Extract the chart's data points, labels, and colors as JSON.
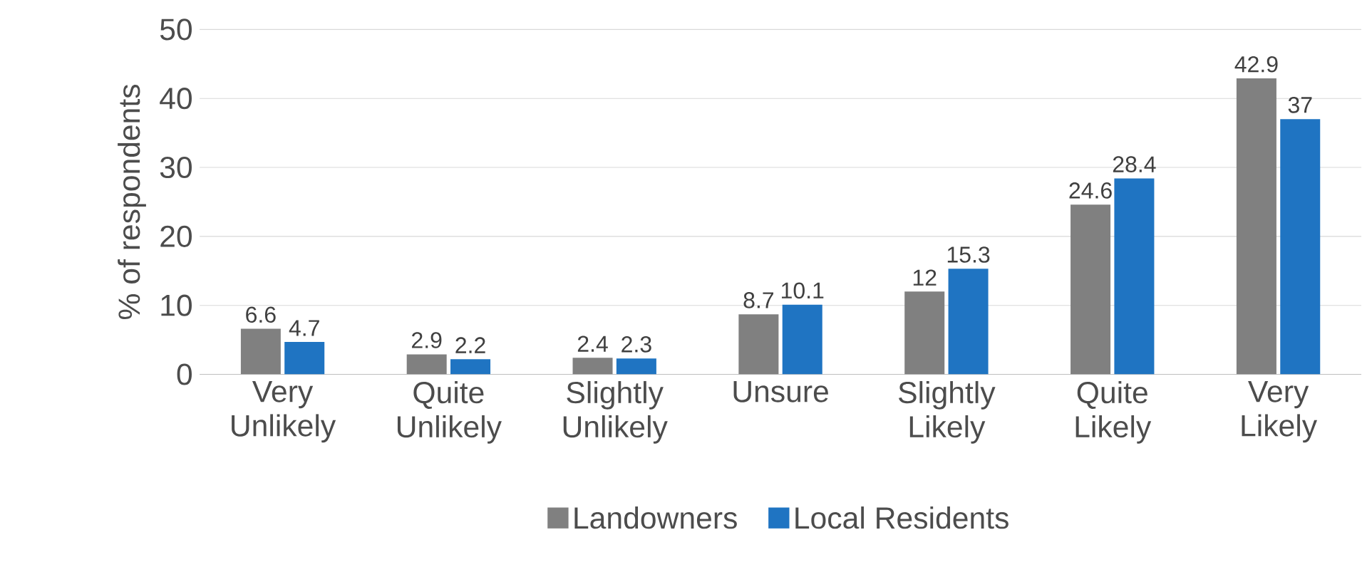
{
  "chart_data": {
    "type": "bar",
    "ylabel": "% of respondents",
    "categories": [
      "Very Unlikely",
      "Quite Unlikely",
      "Slightly Unlikely",
      "Unsure",
      "Slightly Likely",
      "Quite Likely",
      "Very Likely"
    ],
    "series": [
      {
        "name": "Landowners",
        "color": "#808080",
        "values": [
          6.6,
          2.9,
          2.4,
          8.7,
          12,
          24.6,
          42.9
        ]
      },
      {
        "name": "Local Residents",
        "color": "#1f74c2",
        "values": [
          4.7,
          2.2,
          2.3,
          10.1,
          15.3,
          28.4,
          37
        ]
      }
    ],
    "ylim": [
      0,
      50
    ],
    "yticks": [
      0,
      10,
      20,
      30,
      40,
      50
    ],
    "grid": "y",
    "legend": "bottom",
    "data_labels": true
  }
}
